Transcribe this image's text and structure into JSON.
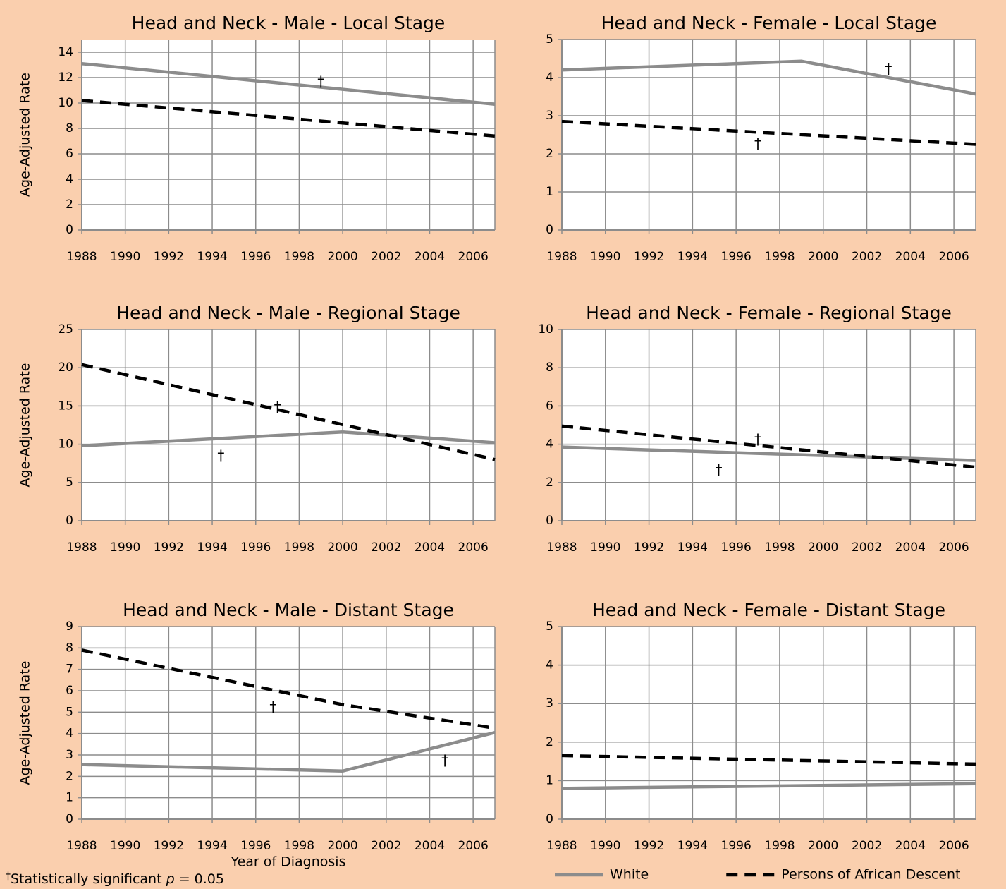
{
  "charts": [
    {
      "chart_data": {
        "type": "line",
        "title": "Head and Neck - Male - Local Stage",
        "y_label": "Age-Adjusted Rate",
        "xlim": [
          1988,
          2007
        ],
        "xticks": [
          1988,
          1990,
          1992,
          1994,
          1996,
          1998,
          2000,
          2002,
          2004,
          2006
        ],
        "ylim": [
          0,
          15
        ],
        "yticks": [
          0,
          2,
          4,
          6,
          8,
          10,
          12,
          14
        ],
        "grid": true,
        "series": [
          {
            "name": "White",
            "color": "#8c8c8c",
            "style": "solid",
            "x": [
              1988,
              2007
            ],
            "values": [
              13.1,
              9.9
            ]
          },
          {
            "name": "Persons of African Descent",
            "color": "#000000",
            "style": "dashed",
            "x": [
              1988,
              2007
            ],
            "values": [
              10.2,
              7.4
            ]
          }
        ],
        "annotations": [
          {
            "text": "†",
            "x": 1999,
            "y": 11.6
          }
        ]
      }
    },
    {
      "chart_data": {
        "type": "line",
        "title": "Head and Neck - Female - Local Stage",
        "xlim": [
          1988,
          2007
        ],
        "xticks": [
          1988,
          1990,
          1992,
          1994,
          1996,
          1998,
          2000,
          2002,
          2004,
          2006
        ],
        "ylim": [
          0,
          5
        ],
        "yticks": [
          0,
          1,
          2,
          3,
          4,
          5
        ],
        "grid": true,
        "series": [
          {
            "name": "White",
            "color": "#8c8c8c",
            "style": "solid",
            "x": [
              1988,
              1999,
              2007
            ],
            "values": [
              4.2,
              4.43,
              3.57
            ]
          },
          {
            "name": "Persons of African Descent",
            "color": "#000000",
            "style": "dashed",
            "x": [
              1988,
              2007
            ],
            "values": [
              2.85,
              2.25
            ]
          }
        ],
        "annotations": [
          {
            "text": "†",
            "x": 2003,
            "y": 4.2
          },
          {
            "text": "†",
            "x": 1997,
            "y": 2.25
          }
        ]
      }
    },
    {
      "chart_data": {
        "type": "line",
        "title": "Head and Neck - Male - Regional Stage",
        "y_label": "Age-Adjusted Rate",
        "xlim": [
          1988,
          2007
        ],
        "xticks": [
          1988,
          1990,
          1992,
          1994,
          1996,
          1998,
          2000,
          2002,
          2004,
          2006
        ],
        "ylim": [
          0,
          25
        ],
        "yticks": [
          0,
          5,
          10,
          15,
          20,
          25
        ],
        "grid": true,
        "series": [
          {
            "name": "White",
            "color": "#8c8c8c",
            "style": "solid",
            "x": [
              1988,
              2000,
              2007
            ],
            "values": [
              9.8,
              11.6,
              10.2
            ]
          },
          {
            "name": "Persons of African Descent",
            "color": "#000000",
            "style": "dashed",
            "x": [
              1988,
              2007
            ],
            "values": [
              20.4,
              8.0
            ]
          }
        ],
        "annotations": [
          {
            "text": "†",
            "x": 1997,
            "y": 14.7
          },
          {
            "text": "†",
            "x": 1994.4,
            "y": 8.4
          }
        ]
      }
    },
    {
      "chart_data": {
        "type": "line",
        "title": "Head and Neck - Female - Regional Stage",
        "xlim": [
          1988,
          2007
        ],
        "xticks": [
          1988,
          1990,
          1992,
          1994,
          1996,
          1998,
          2000,
          2002,
          2004,
          2006
        ],
        "ylim": [
          0,
          10
        ],
        "yticks": [
          0,
          2,
          4,
          6,
          8,
          10
        ],
        "grid": true,
        "series": [
          {
            "name": "White",
            "color": "#8c8c8c",
            "style": "solid",
            "x": [
              1988,
              2007
            ],
            "values": [
              3.85,
              3.15
            ]
          },
          {
            "name": "Persons of African Descent",
            "color": "#000000",
            "style": "dashed",
            "x": [
              1988,
              2007
            ],
            "values": [
              4.95,
              2.8
            ]
          }
        ],
        "annotations": [
          {
            "text": "†",
            "x": 1997,
            "y": 4.2
          },
          {
            "text": "†",
            "x": 1995.2,
            "y": 2.6
          }
        ]
      }
    },
    {
      "chart_data": {
        "type": "line",
        "title": "Head and Neck - Male - Distant Stage",
        "y_label": "Age-Adjusted Rate",
        "x_label": "Year of Diagnosis",
        "xlim": [
          1988,
          2007
        ],
        "xticks": [
          1988,
          1990,
          1992,
          1994,
          1996,
          1998,
          2000,
          2002,
          2004,
          2006
        ],
        "ylim": [
          0,
          9
        ],
        "yticks": [
          0,
          1,
          2,
          3,
          4,
          5,
          6,
          7,
          8,
          9
        ],
        "grid": true,
        "series": [
          {
            "name": "White",
            "color": "#8c8c8c",
            "style": "solid",
            "x": [
              1988,
              2000,
              2007
            ],
            "values": [
              2.55,
              2.25,
              4.05
            ]
          },
          {
            "name": "Persons of African Descent",
            "color": "#000000",
            "style": "dashed",
            "x": [
              1988,
              2000,
              2007
            ],
            "values": [
              7.9,
              5.35,
              4.25
            ]
          }
        ],
        "annotations": [
          {
            "text": "†",
            "x": 1996.8,
            "y": 5.2
          },
          {
            "text": "†",
            "x": 2004.7,
            "y": 2.7
          }
        ]
      }
    },
    {
      "chart_data": {
        "type": "line",
        "title": "Head and Neck - Female - Distant Stage",
        "xlim": [
          1988,
          2007
        ],
        "xticks": [
          1988,
          1990,
          1992,
          1994,
          1996,
          1998,
          2000,
          2002,
          2004,
          2006
        ],
        "ylim": [
          0,
          5
        ],
        "yticks": [
          0,
          1,
          2,
          3,
          4,
          5
        ],
        "grid": true,
        "legend": "below",
        "series": [
          {
            "name": "White",
            "color": "#8c8c8c",
            "style": "solid",
            "x": [
              1988,
              2007
            ],
            "values": [
              0.8,
              0.92
            ]
          },
          {
            "name": "Persons of African Descent",
            "color": "#000000",
            "style": "dashed",
            "x": [
              1988,
              2007
            ],
            "values": [
              1.65,
              1.43
            ]
          }
        ],
        "annotations": []
      }
    }
  ],
  "footnote": {
    "mark": "†",
    "text": "Statistically significant ",
    "symbol": "p",
    "rest": " = 0.05"
  }
}
